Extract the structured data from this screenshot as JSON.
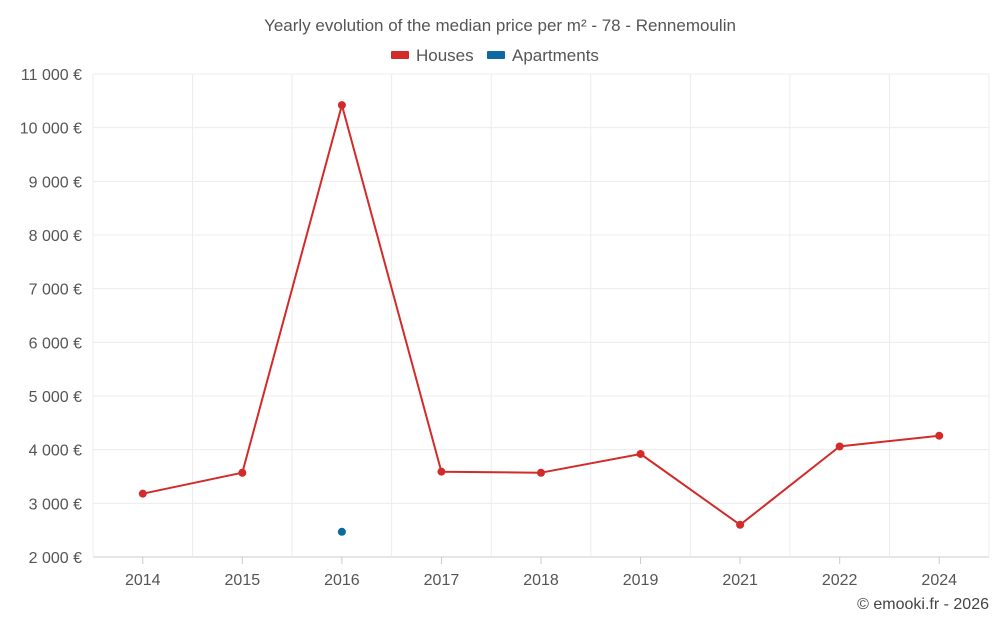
{
  "chart_data": {
    "type": "line",
    "title": "Yearly evolution of the median price per m² - 78 - Rennemoulin",
    "categories": [
      "2014",
      "2015",
      "2016",
      "2017",
      "2018",
      "2019",
      "2021",
      "2022",
      "2024"
    ],
    "series": [
      {
        "name": "Houses",
        "color": "#d32a2a",
        "values": [
          3180,
          3570,
          10420,
          3590,
          3570,
          3920,
          2600,
          4060,
          4260
        ]
      },
      {
        "name": "Apartments",
        "color": "#0a6aa1",
        "values": [
          null,
          null,
          2470,
          null,
          null,
          null,
          null,
          null,
          null
        ]
      }
    ],
    "ylim": [
      2000,
      11000
    ],
    "yticks": [
      2000,
      3000,
      4000,
      5000,
      6000,
      7000,
      8000,
      9000,
      10000,
      11000
    ],
    "ytick_labels": [
      "2 000 €",
      "3 000 €",
      "4 000 €",
      "5 000 €",
      "6 000 €",
      "7 000 €",
      "8 000 €",
      "9 000 €",
      "10 000 €",
      "11 000 €"
    ],
    "xlabel": "",
    "ylabel": "",
    "grid": true,
    "legend_position": "top-center"
  },
  "credit": "© emooki.fr - 2026"
}
